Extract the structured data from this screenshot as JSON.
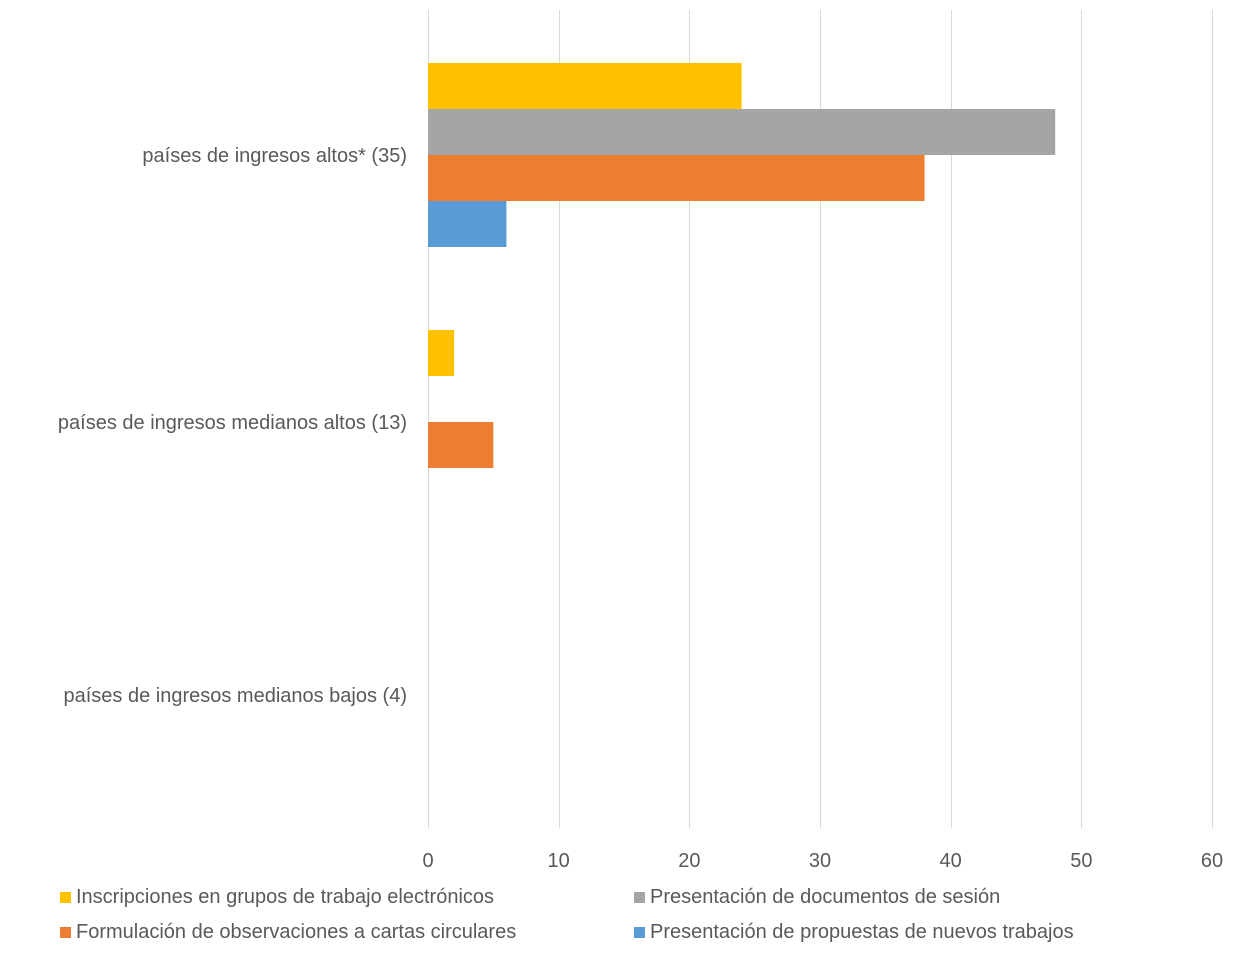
{
  "chart_data": {
    "type": "bar",
    "orientation": "horizontal",
    "categories": [
      "países de ingresos altos* (35)",
      "países de ingresos medianos altos (13)",
      "países de ingresos medianos bajos (4)"
    ],
    "series": [
      {
        "name": "Inscripciones en grupos de trabajo electrónicos",
        "color": "#FFC000",
        "values": [
          24,
          2,
          0
        ]
      },
      {
        "name": "Presentación de documentos de sesión",
        "color": "#A5A5A5",
        "values": [
          48,
          0,
          0
        ]
      },
      {
        "name": "Formulación de observaciones a cartas circulares",
        "color": "#ED7D31",
        "values": [
          38,
          5,
          0
        ]
      },
      {
        "name": "Presentación de propuestas de nuevos trabajos",
        "color": "#5B9BD5",
        "values": [
          6,
          0,
          0
        ]
      }
    ],
    "xlim": [
      0,
      60
    ],
    "xticks": [
      "0",
      "10",
      "20",
      "30",
      "40",
      "50",
      "60"
    ],
    "grid": true,
    "legend_position": "bottom"
  },
  "legend_order": [
    0,
    1,
    2,
    3
  ]
}
